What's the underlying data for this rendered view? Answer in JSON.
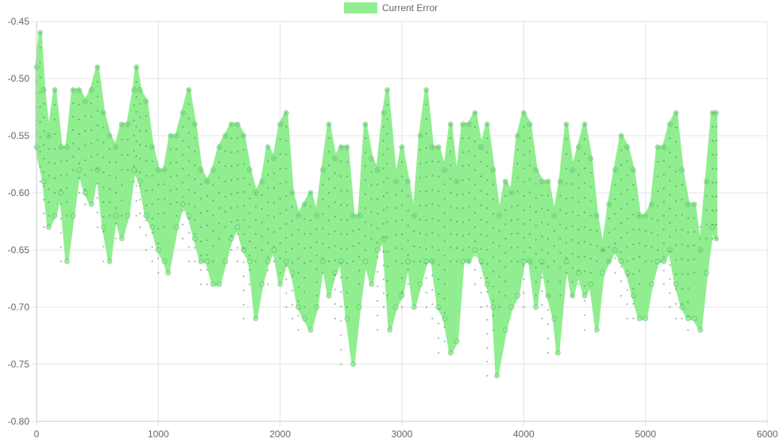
{
  "chart_data": {
    "type": "line",
    "title": "",
    "xlabel": "",
    "ylabel": "",
    "xlim": [
      0,
      6000
    ],
    "ylim": [
      -0.8,
      -0.45
    ],
    "x_ticks": [
      "0",
      "1000",
      "2000",
      "3000",
      "4000",
      "5000",
      "6000"
    ],
    "y_ticks": [
      "-0.45",
      "-0.50",
      "-0.55",
      "-0.60",
      "-0.65",
      "-0.70",
      "-0.75",
      "-0.80"
    ],
    "grid": true,
    "legend": {
      "position": "top-center",
      "entries": [
        "Current Error"
      ]
    },
    "series": [
      {
        "name": "Current Error",
        "color": "#90ee90",
        "point_border_color": "#2e8b57",
        "dense_band": true,
        "x_start": 0,
        "x_end": 5580,
        "lower_envelope": [
          [
            0,
            -0.56
          ],
          [
            60,
            -0.59
          ],
          [
            100,
            -0.63
          ],
          [
            150,
            -0.62
          ],
          [
            200,
            -0.6
          ],
          [
            250,
            -0.66
          ],
          [
            300,
            -0.62
          ],
          [
            350,
            -0.58
          ],
          [
            400,
            -0.6
          ],
          [
            450,
            -0.61
          ],
          [
            500,
            -0.58
          ],
          [
            550,
            -0.63
          ],
          [
            600,
            -0.66
          ],
          [
            650,
            -0.62
          ],
          [
            700,
            -0.64
          ],
          [
            750,
            -0.62
          ],
          [
            800,
            -0.58
          ],
          [
            850,
            -0.59
          ],
          [
            900,
            -0.62
          ],
          [
            950,
            -0.63
          ],
          [
            1000,
            -0.65
          ],
          [
            1050,
            -0.66
          ],
          [
            1080,
            -0.67
          ],
          [
            1150,
            -0.63
          ],
          [
            1200,
            -0.61
          ],
          [
            1250,
            -0.62
          ],
          [
            1300,
            -0.64
          ],
          [
            1350,
            -0.66
          ],
          [
            1400,
            -0.66
          ],
          [
            1450,
            -0.68
          ],
          [
            1500,
            -0.68
          ],
          [
            1550,
            -0.66
          ],
          [
            1600,
            -0.64
          ],
          [
            1650,
            -0.63
          ],
          [
            1700,
            -0.65
          ],
          [
            1750,
            -0.66
          ],
          [
            1800,
            -0.71
          ],
          [
            1850,
            -0.68
          ],
          [
            1900,
            -0.66
          ],
          [
            1950,
            -0.65
          ],
          [
            2000,
            -0.68
          ],
          [
            2050,
            -0.66
          ],
          [
            2100,
            -0.67
          ],
          [
            2150,
            -0.7
          ],
          [
            2200,
            -0.71
          ],
          [
            2250,
            -0.72
          ],
          [
            2300,
            -0.7
          ],
          [
            2350,
            -0.66
          ],
          [
            2400,
            -0.69
          ],
          [
            2450,
            -0.67
          ],
          [
            2500,
            -0.66
          ],
          [
            2550,
            -0.71
          ],
          [
            2600,
            -0.75
          ],
          [
            2650,
            -0.7
          ],
          [
            2700,
            -0.66
          ],
          [
            2750,
            -0.68
          ],
          [
            2800,
            -0.65
          ],
          [
            2850,
            -0.64
          ],
          [
            2900,
            -0.72
          ],
          [
            2950,
            -0.7
          ],
          [
            3000,
            -0.69
          ],
          [
            3050,
            -0.66
          ],
          [
            3100,
            -0.7
          ],
          [
            3150,
            -0.68
          ],
          [
            3200,
            -0.66
          ],
          [
            3250,
            -0.66
          ],
          [
            3300,
            -0.7
          ],
          [
            3350,
            -0.71
          ],
          [
            3400,
            -0.74
          ],
          [
            3450,
            -0.73
          ],
          [
            3500,
            -0.66
          ],
          [
            3550,
            -0.66
          ],
          [
            3600,
            -0.65
          ],
          [
            3650,
            -0.66
          ],
          [
            3700,
            -0.68
          ],
          [
            3750,
            -0.7
          ],
          [
            3780,
            -0.76
          ],
          [
            3850,
            -0.72
          ],
          [
            3900,
            -0.7
          ],
          [
            3950,
            -0.69
          ],
          [
            4000,
            -0.66
          ],
          [
            4050,
            -0.66
          ],
          [
            4100,
            -0.7
          ],
          [
            4150,
            -0.66
          ],
          [
            4200,
            -0.69
          ],
          [
            4250,
            -0.71
          ],
          [
            4280,
            -0.74
          ],
          [
            4350,
            -0.66
          ],
          [
            4400,
            -0.69
          ],
          [
            4450,
            -0.67
          ],
          [
            4500,
            -0.69
          ],
          [
            4550,
            -0.68
          ],
          [
            4600,
            -0.72
          ],
          [
            4650,
            -0.67
          ],
          [
            4700,
            -0.66
          ],
          [
            4750,
            -0.65
          ],
          [
            4800,
            -0.66
          ],
          [
            4850,
            -0.67
          ],
          [
            4900,
            -0.69
          ],
          [
            4950,
            -0.71
          ],
          [
            5000,
            -0.71
          ],
          [
            5050,
            -0.68
          ],
          [
            5100,
            -0.66
          ],
          [
            5150,
            -0.66
          ],
          [
            5200,
            -0.65
          ],
          [
            5250,
            -0.68
          ],
          [
            5300,
            -0.7
          ],
          [
            5350,
            -0.71
          ],
          [
            5400,
            -0.71
          ],
          [
            5450,
            -0.72
          ],
          [
            5500,
            -0.67
          ],
          [
            5550,
            -0.63
          ],
          [
            5580,
            -0.64
          ]
        ],
        "upper_envelope": [
          [
            0,
            -0.49
          ],
          [
            30,
            -0.46
          ],
          [
            60,
            -0.51
          ],
          [
            100,
            -0.55
          ],
          [
            150,
            -0.51
          ],
          [
            200,
            -0.56
          ],
          [
            250,
            -0.56
          ],
          [
            300,
            -0.51
          ],
          [
            350,
            -0.51
          ],
          [
            400,
            -0.52
          ],
          [
            450,
            -0.51
          ],
          [
            500,
            -0.49
          ],
          [
            550,
            -0.53
          ],
          [
            600,
            -0.55
          ],
          [
            650,
            -0.56
          ],
          [
            700,
            -0.54
          ],
          [
            750,
            -0.54
          ],
          [
            800,
            -0.51
          ],
          [
            820,
            -0.49
          ],
          [
            850,
            -0.51
          ],
          [
            900,
            -0.52
          ],
          [
            950,
            -0.56
          ],
          [
            1000,
            -0.58
          ],
          [
            1050,
            -0.58
          ],
          [
            1100,
            -0.55
          ],
          [
            1150,
            -0.55
          ],
          [
            1200,
            -0.53
          ],
          [
            1250,
            -0.51
          ],
          [
            1300,
            -0.54
          ],
          [
            1350,
            -0.58
          ],
          [
            1400,
            -0.59
          ],
          [
            1450,
            -0.58
          ],
          [
            1500,
            -0.56
          ],
          [
            1550,
            -0.55
          ],
          [
            1600,
            -0.54
          ],
          [
            1650,
            -0.54
          ],
          [
            1700,
            -0.55
          ],
          [
            1750,
            -0.58
          ],
          [
            1800,
            -0.6
          ],
          [
            1850,
            -0.59
          ],
          [
            1900,
            -0.56
          ],
          [
            1950,
            -0.57
          ],
          [
            2000,
            -0.54
          ],
          [
            2050,
            -0.53
          ],
          [
            2100,
            -0.6
          ],
          [
            2150,
            -0.62
          ],
          [
            2200,
            -0.61
          ],
          [
            2250,
            -0.6
          ],
          [
            2300,
            -0.62
          ],
          [
            2350,
            -0.58
          ],
          [
            2400,
            -0.54
          ],
          [
            2450,
            -0.57
          ],
          [
            2500,
            -0.56
          ],
          [
            2550,
            -0.56
          ],
          [
            2600,
            -0.62
          ],
          [
            2650,
            -0.62
          ],
          [
            2700,
            -0.54
          ],
          [
            2750,
            -0.57
          ],
          [
            2800,
            -0.58
          ],
          [
            2850,
            -0.53
          ],
          [
            2880,
            -0.51
          ],
          [
            2950,
            -0.59
          ],
          [
            3000,
            -0.56
          ],
          [
            3050,
            -0.59
          ],
          [
            3100,
            -0.62
          ],
          [
            3150,
            -0.55
          ],
          [
            3200,
            -0.51
          ],
          [
            3250,
            -0.56
          ],
          [
            3300,
            -0.56
          ],
          [
            3350,
            -0.58
          ],
          [
            3400,
            -0.54
          ],
          [
            3450,
            -0.59
          ],
          [
            3500,
            -0.54
          ],
          [
            3550,
            -0.54
          ],
          [
            3600,
            -0.53
          ],
          [
            3650,
            -0.56
          ],
          [
            3700,
            -0.54
          ],
          [
            3750,
            -0.58
          ],
          [
            3800,
            -0.62
          ],
          [
            3850,
            -0.59
          ],
          [
            3900,
            -0.6
          ],
          [
            3950,
            -0.55
          ],
          [
            4000,
            -0.53
          ],
          [
            4050,
            -0.54
          ],
          [
            4100,
            -0.58
          ],
          [
            4150,
            -0.59
          ],
          [
            4200,
            -0.59
          ],
          [
            4250,
            -0.62
          ],
          [
            4300,
            -0.59
          ],
          [
            4350,
            -0.54
          ],
          [
            4400,
            -0.58
          ],
          [
            4450,
            -0.56
          ],
          [
            4500,
            -0.54
          ],
          [
            4550,
            -0.57
          ],
          [
            4600,
            -0.62
          ],
          [
            4650,
            -0.65
          ],
          [
            4700,
            -0.61
          ],
          [
            4750,
            -0.58
          ],
          [
            4800,
            -0.55
          ],
          [
            4850,
            -0.56
          ],
          [
            4900,
            -0.58
          ],
          [
            4950,
            -0.62
          ],
          [
            5000,
            -0.62
          ],
          [
            5050,
            -0.61
          ],
          [
            5100,
            -0.56
          ],
          [
            5150,
            -0.56
          ],
          [
            5200,
            -0.54
          ],
          [
            5250,
            -0.53
          ],
          [
            5300,
            -0.58
          ],
          [
            5350,
            -0.61
          ],
          [
            5400,
            -0.61
          ],
          [
            5450,
            -0.65
          ],
          [
            5500,
            -0.59
          ],
          [
            5550,
            -0.53
          ],
          [
            5580,
            -0.53
          ]
        ]
      }
    ]
  }
}
